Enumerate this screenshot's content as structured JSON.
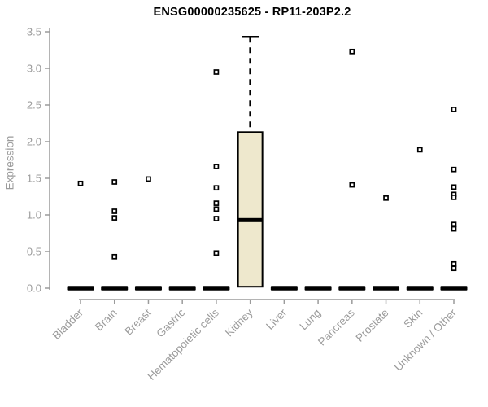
{
  "chart_data": {
    "type": "boxplot",
    "title": "ENSG00000235625 - RP11-203P2.2",
    "ylabel": "Expression",
    "xlabel": "",
    "ylim": [
      0.0,
      3.5
    ],
    "yticks": [
      0.0,
      0.5,
      1.0,
      1.5,
      2.0,
      2.5,
      3.0,
      3.5
    ],
    "ytick_labels": [
      "0.0",
      "0.5",
      "1.0",
      "1.5",
      "2.0",
      "2.5",
      "3.0",
      "3.5"
    ],
    "categories": [
      "Bladder",
      "Brain",
      "Breast",
      "Gastric",
      "Hematopoietic cells",
      "Kidney",
      "Liver",
      "Lung",
      "Pancreas",
      "Prostate",
      "Skin",
      "Unknown / Other"
    ],
    "grid": false,
    "legend": {
      "visible": false
    },
    "marker": "open-square",
    "series": [
      {
        "category": "Bladder",
        "box": {
          "collapsed": true,
          "q1": 0,
          "median": 0,
          "q3": 0
        },
        "points": [
          1.43
        ]
      },
      {
        "category": "Brain",
        "box": {
          "collapsed": true,
          "q1": 0,
          "median": 0,
          "q3": 0
        },
        "points": [
          1.45,
          1.05,
          0.96,
          0.43
        ]
      },
      {
        "category": "Breast",
        "box": {
          "collapsed": true,
          "q1": 0,
          "median": 0,
          "q3": 0
        },
        "points": [
          1.49
        ]
      },
      {
        "category": "Gastric",
        "box": {
          "collapsed": true,
          "q1": 0,
          "median": 0,
          "q3": 0
        },
        "points": []
      },
      {
        "category": "Hematopoietic cells",
        "box": {
          "collapsed": true,
          "q1": 0,
          "median": 0,
          "q3": 0
        },
        "points": [
          2.95,
          1.66,
          1.37,
          1.16,
          1.08,
          0.95,
          0.48
        ]
      },
      {
        "category": "Kidney",
        "box": {
          "collapsed": false,
          "q1": 0.02,
          "median": 0.93,
          "q3": 2.13,
          "whisker_high": 3.43,
          "whisker_low": null
        },
        "points": []
      },
      {
        "category": "Liver",
        "box": {
          "collapsed": true,
          "q1": 0,
          "median": 0,
          "q3": 0
        },
        "points": []
      },
      {
        "category": "Lung",
        "box": {
          "collapsed": true,
          "q1": 0,
          "median": 0,
          "q3": 0
        },
        "points": []
      },
      {
        "category": "Pancreas",
        "box": {
          "collapsed": true,
          "q1": 0,
          "median": 0,
          "q3": 0
        },
        "points": [
          3.23,
          1.41
        ]
      },
      {
        "category": "Prostate",
        "box": {
          "collapsed": true,
          "q1": 0,
          "median": 0,
          "q3": 0
        },
        "points": [
          1.23
        ]
      },
      {
        "category": "Skin",
        "box": {
          "collapsed": true,
          "q1": 0,
          "median": 0,
          "q3": 0
        },
        "points": [
          1.89
        ]
      },
      {
        "category": "Unknown / Other",
        "box": {
          "collapsed": true,
          "q1": 0,
          "median": 0,
          "q3": 0
        },
        "points": [
          2.44,
          1.62,
          1.38,
          1.28,
          1.24,
          0.87,
          0.81,
          0.33,
          0.27
        ]
      }
    ],
    "style": {
      "box_fill": "#EEE8CD",
      "box_stroke": "#000000",
      "median_color": "#000000",
      "point_color": "#000000",
      "axis_color": "#9B9B9B",
      "tick_label_color": "#9B9B9B",
      "title_color": "#000000",
      "background": "#FFFFFF"
    }
  }
}
